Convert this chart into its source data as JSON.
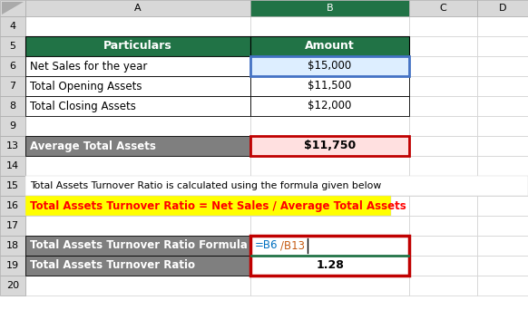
{
  "bg_color": "#FFFFFF",
  "header_bg": "#217346",
  "gray_bg": "#7F7F7F",
  "yellow_bg": "#FFFF00",
  "pink_bg": "#FFE0E0",
  "blue_fill": "#DDEEFF",
  "blue_border": "#4472C4",
  "red_border": "#C00000",
  "green_border": "#217346",
  "col_header_bg": "#E0E0E0",
  "triangle_color": "#C0C0C0",
  "col_a_label": "Particulars",
  "col_b_label": "Amount",
  "row6_a": "Net Sales for the year",
  "row6_b": "$15,000",
  "row7_a": "Total Opening Assets",
  "row7_b": "$11,500",
  "row8_a": "Total Closing Assets",
  "row8_b": "$12,000",
  "row13_a": "Average Total Assets",
  "row13_b": "$11,750",
  "row15_text": "Total Assets Turnover Ratio is calculated using the formula given below",
  "row16_text": "Total Assets Turnover Ratio = Net Sales / Average Total Assets",
  "row18_a": "Total Assets Turnover Ratio Formula",
  "row18_b1": "=B6",
  "row18_b2": "/B13",
  "row19_a": "Total Assets Turnover Ratio",
  "row19_b": "1.28",
  "row_sequence": [
    4,
    5,
    6,
    7,
    8,
    9,
    13,
    14,
    15,
    16,
    17,
    18,
    19,
    20
  ],
  "figw": 5.82,
  "figh": 3.42,
  "dpi": 100
}
